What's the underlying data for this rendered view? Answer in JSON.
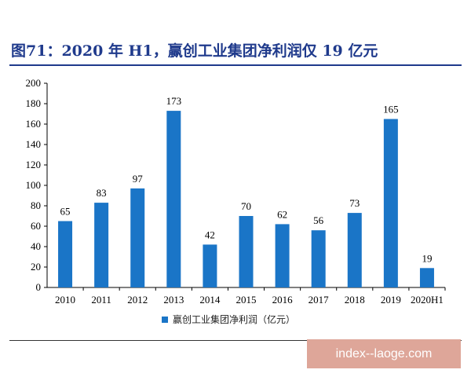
{
  "title": "图71：2020 年 H1，赢创工业集团净利润仅 19 亿元",
  "watermark": "index--laoge.com",
  "colors": {
    "bar": "#1a75c7",
    "title": "#1f3a8c"
  },
  "chart_data": {
    "type": "bar",
    "categories": [
      "2010",
      "2011",
      "2012",
      "2013",
      "2014",
      "2015",
      "2016",
      "2017",
      "2018",
      "2019",
      "2020H1"
    ],
    "series": [
      {
        "name": "赢创工业集团净利润（亿元）",
        "values": [
          65,
          83,
          97,
          173,
          42,
          70,
          62,
          56,
          73,
          165,
          19
        ]
      }
    ],
    "ylim": [
      0,
      200
    ],
    "yticks": [
      0,
      20,
      40,
      60,
      80,
      100,
      120,
      140,
      160,
      180,
      200
    ],
    "grid": false,
    "legend": "bottom-center",
    "data_labels": true
  }
}
